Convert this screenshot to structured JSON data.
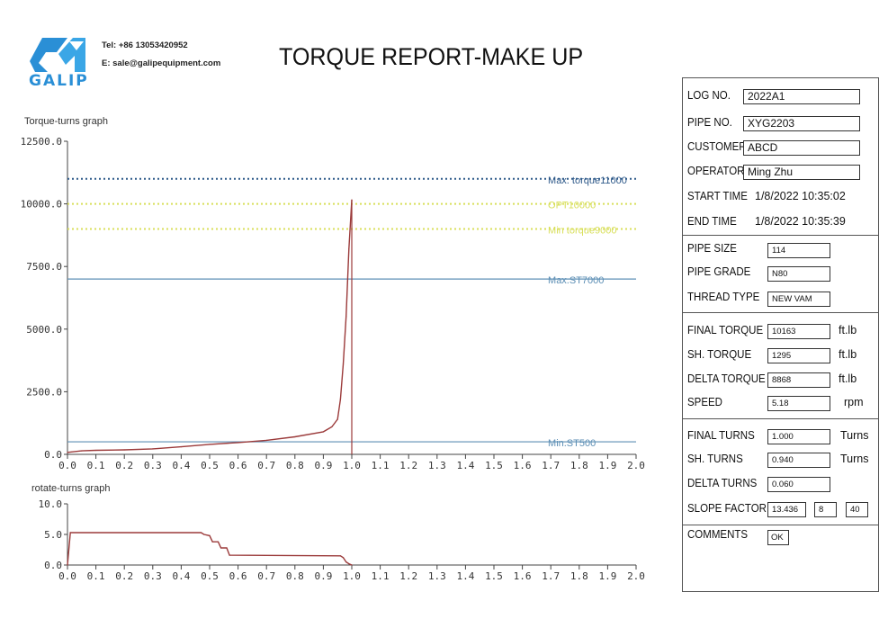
{
  "header": {
    "logo_text": "GALIP",
    "tel": "Tel: +86 13053420952",
    "email": "E: sale@galipequipment.com",
    "title": "TORQUE REPORT-MAKE UP"
  },
  "colors": {
    "logo_blue": "#2a8fd6",
    "curve": "#9b3a3a",
    "max_torque": "#2f5a8a",
    "opt": "#d8df5a",
    "min_torque": "#d8df5a",
    "st_line": "#5d8fb5",
    "rotate_curve": "#9b3a3a"
  },
  "chart_data": [
    {
      "type": "line",
      "title": "Torque-turns graph",
      "xlim": [
        0.0,
        2.0
      ],
      "ylim": [
        0,
        12500
      ],
      "x_ticks": [
        "0.0",
        "0.1",
        "0.2",
        "0.3",
        "0.4",
        "0.5",
        "0.6",
        "0.7",
        "0.8",
        "0.9",
        "1.0",
        "1.1",
        "1.2",
        "1.3",
        "1.4",
        "1.5",
        "1.6",
        "1.7",
        "1.8",
        "1.9",
        "2.0"
      ],
      "y_ticks": [
        "0.0",
        "2500.0",
        "5000.0",
        "7500.0",
        "10000.0",
        "12500.0"
      ],
      "reference_lines": [
        {
          "label": "Max. torque11000",
          "y": 11000,
          "style": "dotted",
          "color": "#2f5a8a"
        },
        {
          "label": "OPT10000",
          "y": 10000,
          "style": "dotted",
          "color": "#d8df5a"
        },
        {
          "label": "Min torque9000",
          "y": 9000,
          "style": "dotted",
          "color": "#d8df5a"
        },
        {
          "label": "Max.ST7000",
          "y": 7000,
          "style": "solid",
          "color": "#5d8fb5"
        },
        {
          "label": "Min.ST500",
          "y": 500,
          "style": "solid",
          "color": "#5d8fb5"
        }
      ],
      "vertical_line_x": 1.0,
      "series": [
        {
          "x": [
            0.0,
            0.05,
            0.1,
            0.2,
            0.3,
            0.4,
            0.5,
            0.6,
            0.7,
            0.8,
            0.9,
            0.93,
            0.95,
            0.96,
            0.97,
            0.98,
            0.99,
            1.0
          ],
          "y": [
            80,
            140,
            160,
            180,
            220,
            300,
            400,
            470,
            560,
            700,
            900,
            1100,
            1400,
            2200,
            3600,
            5500,
            8200,
            10163
          ]
        }
      ]
    },
    {
      "type": "line",
      "title": "rotate-turns graph",
      "xlim": [
        0.0,
        2.0
      ],
      "ylim": [
        0,
        10
      ],
      "x_ticks": [
        "0.0",
        "0.1",
        "0.2",
        "0.3",
        "0.4",
        "0.5",
        "0.6",
        "0.7",
        "0.8",
        "0.9",
        "1.0",
        "1.1",
        "1.2",
        "1.3",
        "1.4",
        "1.5",
        "1.6",
        "1.7",
        "1.8",
        "1.9",
        "2.0"
      ],
      "y_ticks": [
        "0.0",
        "5.0",
        "10.0"
      ],
      "series": [
        {
          "x": [
            0.0,
            0.01,
            0.47,
            0.48,
            0.5,
            0.51,
            0.53,
            0.54,
            0.56,
            0.57,
            0.96,
            0.97,
            0.98,
            0.99,
            1.0
          ],
          "y": [
            0.0,
            5.3,
            5.3,
            5.0,
            4.8,
            3.8,
            3.8,
            2.8,
            2.8,
            1.6,
            1.5,
            1.2,
            0.5,
            0.2,
            0.0
          ]
        }
      ]
    }
  ],
  "panel": {
    "log_no": {
      "label": "LOG NO.",
      "value": "2022A1"
    },
    "pipe_no": {
      "label": "PIPE NO.",
      "value": "XYG2203"
    },
    "customer": {
      "label": "CUSTOMER",
      "value": "ABCD"
    },
    "operator": {
      "label": "OPERATOR",
      "value": "Ming Zhu"
    },
    "start_time": {
      "label": "START TIME",
      "value": "1/8/2022 10:35:02"
    },
    "end_time": {
      "label": "END TIME",
      "value": "1/8/2022 10:35:39"
    },
    "pipe_size": {
      "label": "PIPE SIZE",
      "value": "114"
    },
    "pipe_grade": {
      "label": "PIPE GRADE",
      "value": "N80"
    },
    "thread_type": {
      "label": "THREAD TYPE",
      "value": "NEW VAM"
    },
    "final_torque": {
      "label": "FINAL TORQUE",
      "value": "10163",
      "unit": "ft.lb"
    },
    "sh_torque": {
      "label": "SH. TORQUE",
      "value": "1295",
      "unit": "ft.lb"
    },
    "delta_torque": {
      "label": "DELTA TORQUE",
      "value": "8868",
      "unit": "ft.lb"
    },
    "speed": {
      "label": "SPEED",
      "value": "5.18",
      "unit": "rpm"
    },
    "final_turns": {
      "label": "FINAL TURNS",
      "value": "1.000",
      "unit": "Turns"
    },
    "sh_turns": {
      "label": "SH. TURNS",
      "value": "0.940",
      "unit": "Turns"
    },
    "delta_turns": {
      "label": "DELTA TURNS",
      "value": "0.060"
    },
    "slope_factor": {
      "label": "SLOPE FACTOR",
      "value": "13.436",
      "value2": "8",
      "value3": "40"
    },
    "comments": {
      "label": "COMMENTS",
      "value": "OK"
    }
  }
}
